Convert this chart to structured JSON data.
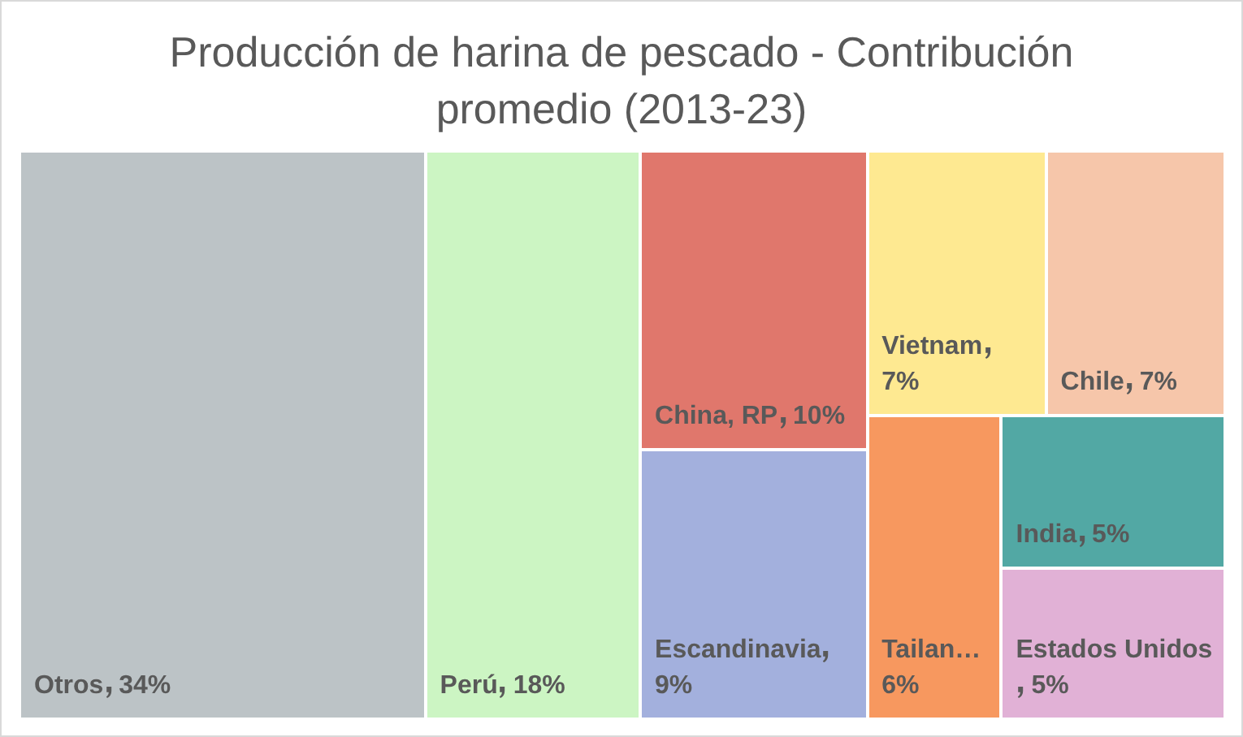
{
  "chart_data": {
    "type": "other",
    "title": "Producción de harina de pescado - Contribución promedio (2013-23)",
    "categories": [
      "Otros",
      "Perú",
      "China, RP",
      "Escandinavia",
      "Vietnam",
      "Chile",
      "Tailan…",
      "India",
      "Estados Unidos"
    ],
    "values": [
      34,
      18,
      10,
      9,
      7,
      7,
      6,
      5,
      5
    ],
    "value_labels": [
      "34%",
      "18%",
      "10%",
      "9%",
      "7%",
      "7%",
      "6%",
      "5%",
      "5%"
    ],
    "colors": [
      "#bcc3c6",
      "#ccf5c3",
      "#e0776c",
      "#a3b0dd",
      "#fee991",
      "#f6c6aa",
      "#f7985f",
      "#52a8a4",
      "#e1b1d6"
    ]
  }
}
